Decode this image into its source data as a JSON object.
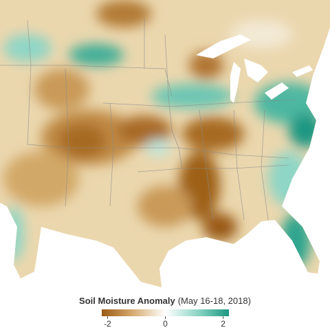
{
  "legend": {
    "title": "Soil Moisture Anomaly",
    "subtitle": "(May 16-18, 2018)",
    "lim": [
      -2.2,
      2.2
    ],
    "ticks": [
      -2,
      0,
      2
    ],
    "colors": [
      "#9a5a14",
      "#d7ad72",
      "#ffffff",
      "#8fd6c6",
      "#1b9783"
    ]
  }
}
